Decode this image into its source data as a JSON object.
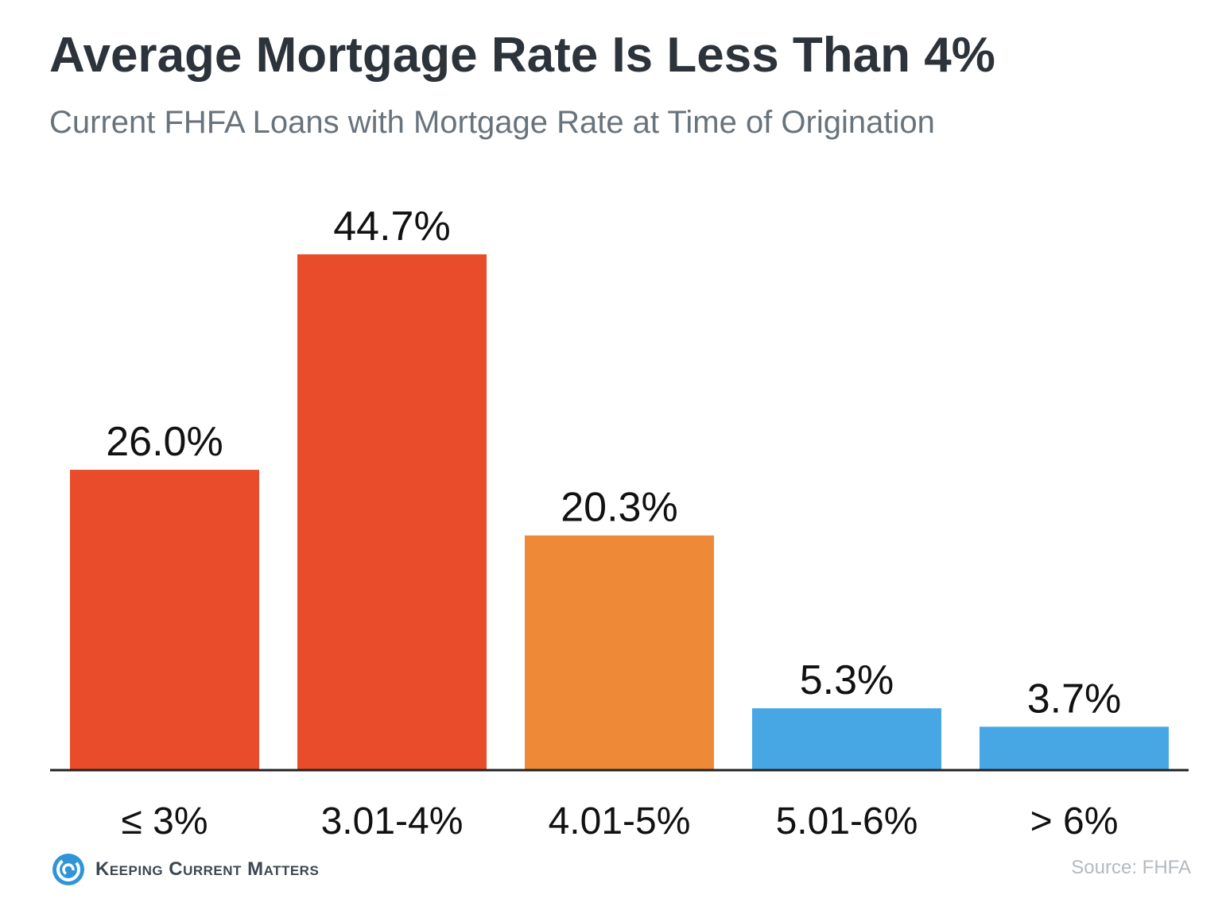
{
  "chart_data": {
    "type": "bar",
    "title": "Average Mortgage Rate Is Less Than 4%",
    "subtitle": "Current FHFA Loans with Mortgage Rate at Time of Origination",
    "categories": [
      "≤ 3%",
      "3.01-4%",
      "4.01-5%",
      "5.01-6%",
      "> 6%"
    ],
    "values": [
      26.0,
      44.7,
      20.3,
      5.3,
      3.7
    ],
    "value_labels": [
      "26.0%",
      "44.7%",
      "20.3%",
      "5.3%",
      "3.7%"
    ],
    "bar_colors": [
      "#e84c2a",
      "#e84c2a",
      "#ee8a37",
      "#47a7e4",
      "#47a7e4"
    ],
    "xlabel": "",
    "ylabel": "",
    "ylim": [
      0,
      50
    ],
    "grid": false,
    "legend": "none"
  },
  "footer": {
    "brand": "Keeping Current Matters",
    "brand_icon": "spiral-icon",
    "source": "Source: FHFA"
  },
  "colors": {
    "title": "#2d333b",
    "subtitle": "#69737c",
    "axis": "#222222",
    "brand_blue": "#2f95d8"
  }
}
